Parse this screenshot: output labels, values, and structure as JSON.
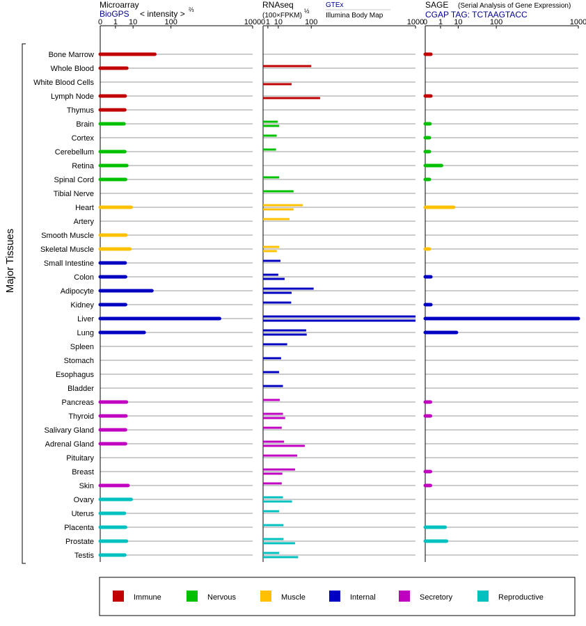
{
  "panels": {
    "microarray": {
      "title": "Microarray",
      "source": "BioGPS",
      "unit_prefix": "< intensity >",
      "unit_exp": "⅔"
    },
    "rnaseq": {
      "title": "RNAseq",
      "unit_prefix": "(100×FPKM)",
      "unit_exp": "½",
      "source_1": "GTEx",
      "source_2": "Illumina Body Map"
    },
    "sage": {
      "title": "SAGE",
      "subtitle": "(Serial Analysis of Gene Expression)",
      "tag": "CGAP TAG: TCTAAGTACC"
    }
  },
  "y_axis_label": "Major Tissues",
  "legend": [
    {
      "label": "Immune",
      "color": "#c00000"
    },
    {
      "label": "Nervous",
      "color": "#00c000"
    },
    {
      "label": "Muscle",
      "color": "#ffc000"
    },
    {
      "label": "Internal",
      "color": "#0000c0"
    },
    {
      "label": "Secretory",
      "color": "#c000c0"
    },
    {
      "label": "Reproductive",
      "color": "#00c0c0"
    }
  ],
  "chart_data": {
    "type": "bar",
    "orientation": "horizontal",
    "scale": "power (tick values 0, 1, 10, 100, 1000)",
    "xlim": [
      0,
      1000
    ],
    "x_ticks": [
      "0",
      "1",
      "10",
      "100",
      "1000"
    ],
    "grid": true,
    "legend_position": "bottom",
    "categories": [
      "Bone Marrow",
      "Whole Blood",
      "White Blood Cells",
      "Lymph Node",
      "Thymus",
      "Brain",
      "Cortex",
      "Cerebellum",
      "Retina",
      "Spinal Cord",
      "Tibial Nerve",
      "Heart",
      "Artery",
      "Smooth Muscle",
      "Skeletal Muscle",
      "Small Intestine",
      "Colon",
      "Adipocyte",
      "Kidney",
      "Liver",
      "Lung",
      "Spleen",
      "Stomach",
      "Esophagus",
      "Bladder",
      "Pancreas",
      "Thyroid",
      "Salivary Gland",
      "Adrenal Gland",
      "Pituitary",
      "Breast",
      "Skin",
      "Ovary",
      "Uterus",
      "Placenta",
      "Prostate",
      "Testis"
    ],
    "groups": [
      "Immune",
      "Immune",
      "Immune",
      "Immune",
      "Immune",
      "Nervous",
      "Nervous",
      "Nervous",
      "Nervous",
      "Nervous",
      "Nervous",
      "Muscle",
      "Muscle",
      "Muscle",
      "Muscle",
      "Internal",
      "Internal",
      "Internal",
      "Internal",
      "Internal",
      "Internal",
      "Internal",
      "Internal",
      "Internal",
      "Internal",
      "Secretory",
      "Secretory",
      "Secretory",
      "Secretory",
      "Secretory",
      "Secretory",
      "Secretory",
      "Reproductive",
      "Reproductive",
      "Reproductive",
      "Reproductive",
      "Reproductive"
    ],
    "microarray": [
      46,
      5.3,
      null,
      4.4,
      4.2,
      3.8,
      null,
      4.2,
      5.3,
      4.6,
      null,
      8.4,
      null,
      4.8,
      7.4,
      4.4,
      4.6,
      39,
      4.6,
      480,
      24,
      null,
      null,
      null,
      null,
      5.1,
      4.8,
      4.6,
      4.6,
      null,
      null,
      6.1,
      8.4,
      4,
      4.6,
      5.1,
      4.2
    ],
    "rnaseq_gtex": [
      null,
      100,
      null,
      null,
      null,
      9.3,
      8,
      7.2,
      null,
      11,
      40,
      68,
      30,
      null,
      11,
      13,
      10,
      110,
      34,
      1000,
      80,
      25,
      14,
      11,
      17,
      12,
      17,
      15,
      19,
      50,
      44,
      15,
      17,
      11,
      18,
      18,
      11
    ],
    "rnaseq_illumina": [
      null,
      null,
      35,
      140,
      null,
      11,
      null,
      null,
      null,
      null,
      null,
      40,
      null,
      null,
      8.2,
      null,
      20,
      35,
      null,
      1000,
      82,
      null,
      null,
      null,
      null,
      null,
      21,
      null,
      75,
      null,
      16,
      null,
      36,
      null,
      null,
      44,
      53
    ],
    "sage": [
      0.05,
      null,
      null,
      0.05,
      null,
      0.03,
      0.02,
      0.02,
      1.2,
      0.02,
      null,
      6.4,
      null,
      null,
      0.02,
      null,
      0.05,
      null,
      0.05,
      1000,
      8.5,
      null,
      null,
      null,
      null,
      0.04,
      0.04,
      null,
      null,
      null,
      0.04,
      0.04,
      null,
      null,
      2.2,
      2.7,
      null
    ]
  }
}
